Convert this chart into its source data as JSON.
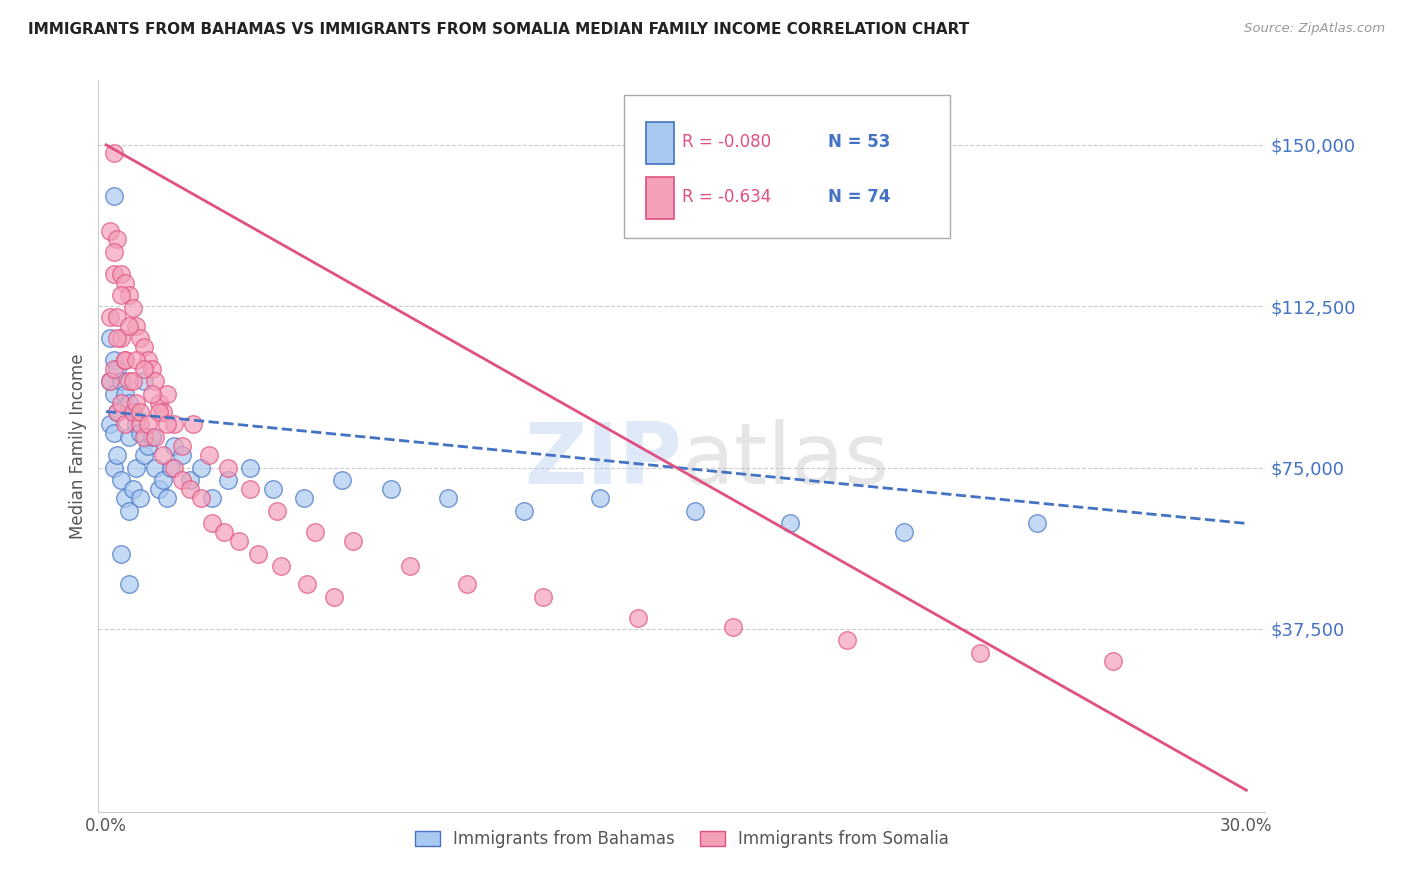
{
  "title": "IMMIGRANTS FROM BAHAMAS VS IMMIGRANTS FROM SOMALIA MEDIAN FAMILY INCOME CORRELATION CHART",
  "source": "Source: ZipAtlas.com",
  "ylabel": "Median Family Income",
  "yticks": [
    37500,
    75000,
    112500,
    150000
  ],
  "ytick_labels": [
    "$37,500",
    "$75,000",
    "$112,500",
    "$150,000"
  ],
  "xticks": [
    0.0,
    0.05,
    0.1,
    0.15,
    0.2,
    0.25,
    0.3
  ],
  "xtick_labels": [
    "0.0%",
    "",
    "",
    "",
    "",
    "",
    "30.0%"
  ],
  "xlim": [
    -0.002,
    0.305
  ],
  "ylim": [
    -5000,
    165000
  ],
  "bahamas_color": "#aac9f0",
  "somalia_color": "#f4a0b8",
  "bahamas_line_color": "#4472c4",
  "somalia_line_color": "#e05080",
  "legend_r_bahamas": "R = -0.080",
  "legend_n_bahamas": "N = 53",
  "legend_r_somalia": "R = -0.634",
  "legend_n_somalia": "N = 74",
  "legend_label_bahamas": "Immigrants from Bahamas",
  "legend_label_somalia": "Immigrants from Somalia",
  "background_color": "#ffffff",
  "watermark_zip": "ZIP",
  "watermark_atlas": "atlas",
  "bahamas_x": [
    0.001,
    0.001,
    0.001,
    0.002,
    0.002,
    0.002,
    0.002,
    0.003,
    0.003,
    0.003,
    0.004,
    0.004,
    0.005,
    0.005,
    0.006,
    0.006,
    0.006,
    0.007,
    0.007,
    0.008,
    0.008,
    0.009,
    0.009,
    0.01,
    0.01,
    0.011,
    0.012,
    0.013,
    0.014,
    0.015,
    0.016,
    0.017,
    0.018,
    0.02,
    0.022,
    0.025,
    0.028,
    0.032,
    0.038,
    0.044,
    0.052,
    0.062,
    0.075,
    0.09,
    0.11,
    0.13,
    0.155,
    0.18,
    0.21,
    0.245,
    0.002,
    0.004,
    0.006
  ],
  "bahamas_y": [
    105000,
    95000,
    85000,
    100000,
    92000,
    83000,
    75000,
    98000,
    88000,
    78000,
    95000,
    72000,
    92000,
    68000,
    90000,
    82000,
    65000,
    88000,
    70000,
    85000,
    75000,
    83000,
    68000,
    95000,
    78000,
    80000,
    82000,
    75000,
    70000,
    72000,
    68000,
    75000,
    80000,
    78000,
    72000,
    75000,
    68000,
    72000,
    75000,
    70000,
    68000,
    72000,
    70000,
    68000,
    65000,
    68000,
    65000,
    62000,
    60000,
    62000,
    138000,
    55000,
    48000
  ],
  "somalia_x": [
    0.001,
    0.001,
    0.001,
    0.002,
    0.002,
    0.002,
    0.003,
    0.003,
    0.003,
    0.004,
    0.004,
    0.004,
    0.005,
    0.005,
    0.005,
    0.006,
    0.006,
    0.007,
    0.007,
    0.008,
    0.008,
    0.009,
    0.009,
    0.01,
    0.01,
    0.011,
    0.012,
    0.013,
    0.014,
    0.015,
    0.016,
    0.018,
    0.02,
    0.023,
    0.027,
    0.032,
    0.038,
    0.045,
    0.055,
    0.065,
    0.08,
    0.095,
    0.115,
    0.14,
    0.165,
    0.195,
    0.23,
    0.265,
    0.002,
    0.003,
    0.004,
    0.005,
    0.006,
    0.007,
    0.008,
    0.009,
    0.01,
    0.011,
    0.012,
    0.013,
    0.014,
    0.015,
    0.016,
    0.018,
    0.02,
    0.022,
    0.025,
    0.028,
    0.031,
    0.035,
    0.04,
    0.046,
    0.053,
    0.06
  ],
  "somalia_y": [
    130000,
    110000,
    95000,
    148000,
    120000,
    98000,
    128000,
    110000,
    88000,
    120000,
    105000,
    90000,
    118000,
    100000,
    85000,
    115000,
    95000,
    112000,
    88000,
    108000,
    90000,
    105000,
    85000,
    103000,
    82000,
    100000,
    98000,
    95000,
    90000,
    88000,
    92000,
    85000,
    80000,
    85000,
    78000,
    75000,
    70000,
    65000,
    60000,
    58000,
    52000,
    48000,
    45000,
    40000,
    38000,
    35000,
    32000,
    30000,
    125000,
    105000,
    115000,
    100000,
    108000,
    95000,
    100000,
    88000,
    98000,
    85000,
    92000,
    82000,
    88000,
    78000,
    85000,
    75000,
    72000,
    70000,
    68000,
    62000,
    60000,
    58000,
    55000,
    52000,
    48000,
    45000
  ]
}
